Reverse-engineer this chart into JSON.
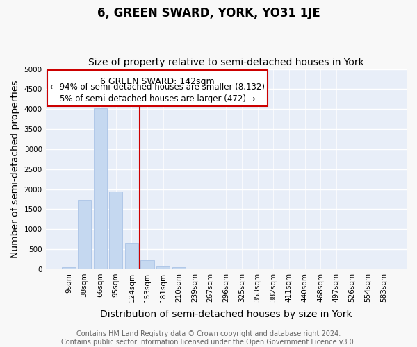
{
  "title": "6, GREEN SWARD, YORK, YO31 1JE",
  "subtitle": "Size of property relative to semi-detached houses in York",
  "xlabel": "Distribution of semi-detached houses by size in York",
  "ylabel": "Number of semi-detached properties",
  "bar_labels": [
    "9sqm",
    "38sqm",
    "66sqm",
    "95sqm",
    "124sqm",
    "153sqm",
    "181sqm",
    "210sqm",
    "239sqm",
    "267sqm",
    "296sqm",
    "325sqm",
    "353sqm",
    "382sqm",
    "411sqm",
    "440sqm",
    "468sqm",
    "497sqm",
    "526sqm",
    "554sqm",
    "583sqm"
  ],
  "bar_values": [
    55,
    1730,
    4020,
    1940,
    650,
    230,
    75,
    55,
    0,
    0,
    0,
    0,
    0,
    0,
    0,
    0,
    0,
    0,
    0,
    0,
    0
  ],
  "bar_color": "#c5d8f0",
  "bar_edge_color": "#b0c8e8",
  "vline_position": 4.5,
  "vline_color": "#cc0000",
  "annotation_title": "6 GREEN SWARD: 142sqm",
  "annotation_line1": "← 94% of semi-detached houses are smaller (8,132)",
  "annotation_line2": "5% of semi-detached houses are larger (472) →",
  "ylim": [
    0,
    5000
  ],
  "yticks": [
    0,
    500,
    1000,
    1500,
    2000,
    2500,
    3000,
    3500,
    4000,
    4500,
    5000
  ],
  "footer_line1": "Contains HM Land Registry data © Crown copyright and database right 2024.",
  "footer_line2": "Contains public sector information licensed under the Open Government Licence v3.0.",
  "fig_background": "#f8f8f8",
  "plot_background": "#e8eef8",
  "grid_color": "white",
  "title_fontsize": 12,
  "subtitle_fontsize": 10,
  "axis_label_fontsize": 10,
  "tick_fontsize": 7.5,
  "footer_fontsize": 7,
  "annotation_fontsize_title": 9,
  "annotation_fontsize_body": 8.5
}
